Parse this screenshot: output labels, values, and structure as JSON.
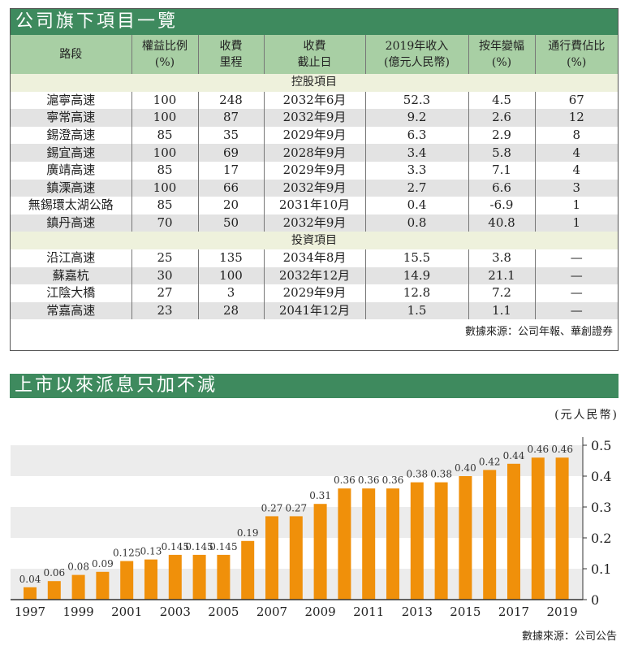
{
  "table": {
    "title": "公司旗下項目一覽",
    "headers": [
      [
        "路段",
        ""
      ],
      [
        "權益比例",
        "(%)"
      ],
      [
        "收費",
        "里程"
      ],
      [
        "收費",
        "截止日"
      ],
      [
        "2019年收入",
        "(億元人民幣)"
      ],
      [
        "按年變幅",
        "(%)"
      ],
      [
        "通行費佔比",
        "(%)"
      ]
    ],
    "sections": [
      {
        "label": "控股項目",
        "rows": [
          [
            "滬寧高速",
            "100",
            "248",
            "2032年6月",
            "52.3",
            "4.5",
            "67"
          ],
          [
            "寧常高速",
            "100",
            "87",
            "2032年9月",
            "9.2",
            "2.6",
            "12"
          ],
          [
            "錫澄高速",
            "85",
            "35",
            "2029年9月",
            "6.3",
            "2.9",
            "8"
          ],
          [
            "錫宜高速",
            "100",
            "69",
            "2028年9月",
            "3.4",
            "5.8",
            "4"
          ],
          [
            "廣靖高速",
            "85",
            "17",
            "2029年9月",
            "3.3",
            "7.1",
            "4"
          ],
          [
            "鎮溧高速",
            "100",
            "66",
            "2032年9月",
            "2.7",
            "6.6",
            "3"
          ],
          [
            "無錫環太湖公路",
            "85",
            "20",
            "2031年10月",
            "0.4",
            "-6.9",
            "1"
          ],
          [
            "鎮丹高速",
            "70",
            "50",
            "2032年9月",
            "0.8",
            "40.8",
            "1"
          ]
        ]
      },
      {
        "label": "投資項目",
        "rows": [
          [
            "沿江高速",
            "25",
            "135",
            "2034年8月",
            "15.5",
            "3.8",
            "—"
          ],
          [
            "蘇嘉杭",
            "30",
            "100",
            "2032年12月",
            "14.9",
            "21.1",
            "—"
          ],
          [
            "江陰大橋",
            "27",
            "3",
            "2029年9月",
            "12.8",
            "7.2",
            "—"
          ],
          [
            "常嘉高速",
            "23",
            "28",
            "2041年12月",
            "1.5",
            "1.1",
            "—"
          ]
        ]
      }
    ],
    "source": "數據來源：公司年報、華創證券"
  },
  "chart_data": {
    "type": "bar",
    "title": "上市以來派息只加不減",
    "ylabel": "(元人民幣)",
    "xlabel": "",
    "categories": [
      "1997",
      "1998",
      "1999",
      "2000",
      "2001",
      "2002",
      "2003",
      "2004",
      "2005",
      "2006",
      "2007",
      "2008",
      "2009",
      "2010",
      "2011",
      "2012",
      "2013",
      "2014",
      "2015",
      "2016",
      "2017",
      "2018",
      "2019"
    ],
    "values": [
      0.04,
      0.06,
      0.08,
      0.09,
      0.125,
      0.13,
      0.145,
      0.145,
      0.145,
      0.19,
      0.27,
      0.27,
      0.31,
      0.36,
      0.36,
      0.36,
      0.38,
      0.38,
      0.4,
      0.42,
      0.44,
      0.46,
      0.46
    ],
    "data_labels": [
      "0.04",
      "0.06",
      "0.08",
      "0.09",
      "0.125",
      "0.13",
      "0.145",
      "0.145",
      "0.145",
      "0.19",
      "0.27",
      "0.27",
      "0.31",
      "0.36",
      "0.36",
      "0.36",
      "0.38",
      "0.38",
      "0.40",
      "0.42",
      "0.44",
      "0.46",
      "0.46"
    ],
    "x_tick_labels": [
      "1997",
      "1999",
      "2001",
      "2003",
      "2005",
      "2007",
      "2009",
      "2011",
      "2013",
      "2015",
      "2017",
      "2019"
    ],
    "y_tick_labels": [
      "0",
      "0.1",
      "0.2",
      "0.3",
      "0.4",
      "0.5"
    ],
    "ylim": [
      0,
      0.5
    ],
    "y_axis_position": "right",
    "bar_color": "#f0900a",
    "source": "數據來源：公司公告"
  }
}
